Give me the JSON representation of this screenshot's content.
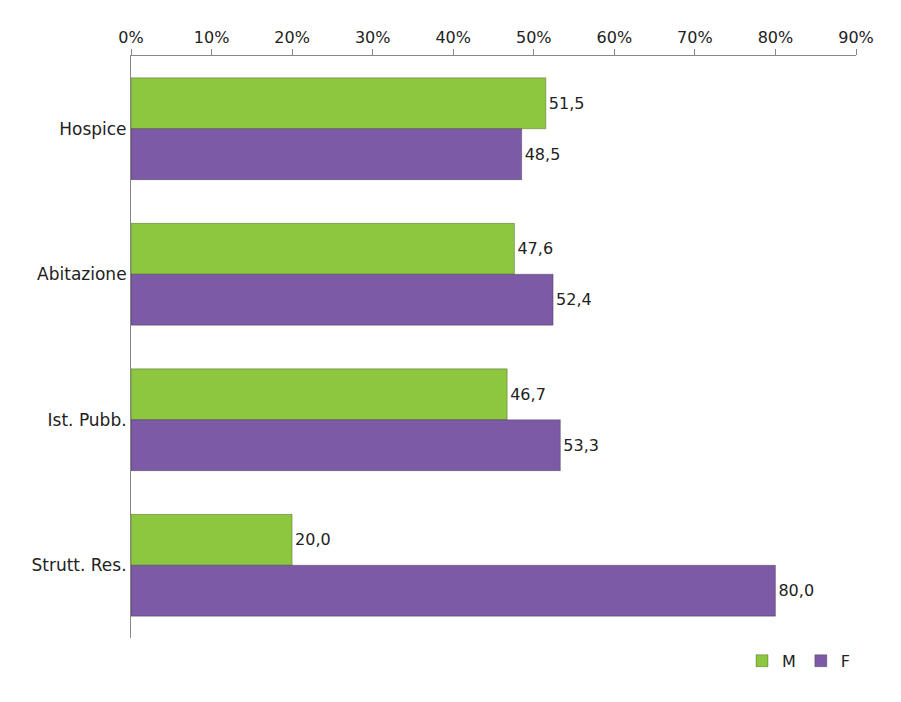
{
  "chart_data": {
    "type": "bar",
    "orientation": "horizontal",
    "categories": [
      "Hospice",
      "Abitazione",
      "Ist. Pubb.",
      "Strutt. Res."
    ],
    "series": [
      {
        "name": "M",
        "color": "#8dc63f",
        "values": [
          51.5,
          47.6,
          46.7,
          20.0
        ],
        "value_labels": [
          "51,5",
          "47,6",
          "46,7",
          "20,0"
        ]
      },
      {
        "name": "F",
        "color": "#7d5aa6",
        "values": [
          48.5,
          52.4,
          53.3,
          80.0
        ],
        "value_labels": [
          "48,5",
          "52,4",
          "53,3",
          "80,0"
        ]
      }
    ],
    "xlim": [
      0,
      90
    ],
    "xticks": [
      {
        "value": 0,
        "label": "0%"
      },
      {
        "value": 10,
        "label": "10%"
      },
      {
        "value": 20,
        "label": "20%"
      },
      {
        "value": 30,
        "label": "30%"
      },
      {
        "value": 40,
        "label": "40%"
      },
      {
        "value": 50,
        "label": "50%"
      },
      {
        "value": 60,
        "label": "60%"
      },
      {
        "value": 70,
        "label": "70%"
      },
      {
        "value": 80,
        "label": "80%"
      },
      {
        "value": 90,
        "label": "90%"
      }
    ],
    "grid": false,
    "legend": "bottom right",
    "data_labels": true
  }
}
